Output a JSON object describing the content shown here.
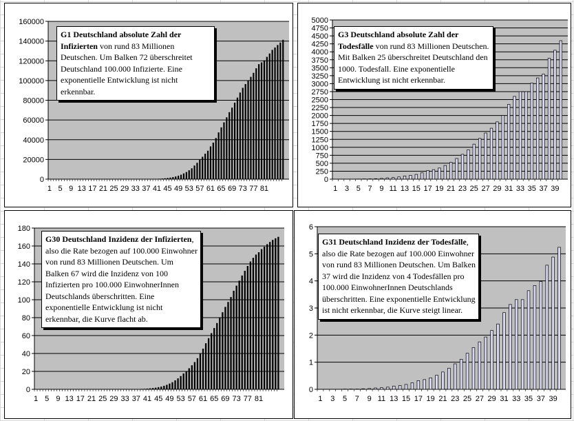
{
  "chart_data": [
    {
      "type": "bar",
      "id": "G1",
      "ylim": [
        0,
        160000
      ],
      "yticks": [
        0,
        20000,
        40000,
        60000,
        80000,
        100000,
        120000,
        140000,
        160000
      ],
      "ytick_labels": [
        "0",
        "20000",
        "40000",
        "60000",
        "80000",
        "100000",
        "120000",
        "140000",
        "160000"
      ],
      "xtick_labels": [
        "1",
        "5",
        "9",
        "13",
        "17",
        "21",
        "25",
        "29",
        "33",
        "37",
        "41",
        "45",
        "49",
        "53",
        "57",
        "61",
        "65",
        "69",
        "73",
        "77",
        "81"
      ],
      "bar_color": "#000000",
      "grid": true,
      "plot_bg": "#c0c0c0",
      "values": [
        0,
        0,
        0,
        0,
        0,
        0,
        0,
        0,
        0,
        0,
        0,
        0,
        0,
        0,
        0,
        0,
        0,
        0,
        0,
        0,
        0,
        0,
        0,
        0,
        0,
        0,
        0,
        0,
        0,
        0,
        0,
        0,
        0,
        0,
        10,
        20,
        40,
        70,
        120,
        200,
        300,
        450,
        650,
        900,
        1200,
        1600,
        2100,
        2700,
        3500,
        4500,
        5800,
        7200,
        9000,
        11000,
        13800,
        16600,
        19600,
        22700,
        25800,
        28800,
        33200,
        37000,
        41700,
        47400,
        52500,
        57600,
        62700,
        67900,
        72500,
        77600,
        82700,
        87800,
        92600,
        96400,
        100100,
        103700,
        107800,
        112400,
        116600,
        118400,
        120500,
        124000,
        127400,
        131100,
        133500,
        136000,
        138500,
        141300
      ],
      "title": "G1  Deutschland absolute Zahl der",
      "note_title2": "Infizierten",
      "note_body": " von rund 83 Millionen Deutschen. Um Balken 72 überschreitet Deutschland 100.000 Infizierte. Eine exponentielle Entwicklung ist nicht erkennbar."
    },
    {
      "type": "bar",
      "id": "G3",
      "ylim": [
        0,
        5000
      ],
      "yticks": [
        0,
        250,
        500,
        750,
        1000,
        1250,
        1500,
        1750,
        2000,
        2250,
        2500,
        2750,
        3000,
        3250,
        3500,
        3750,
        4000,
        4250,
        4500,
        4750,
        5000
      ],
      "ytick_labels": [
        "0",
        "250",
        "500",
        "750",
        "1000",
        "1250",
        "1500",
        "1750",
        "2000",
        "2250",
        "2500",
        "2750",
        "3000",
        "3250",
        "3500",
        "3750",
        "4000",
        "4250",
        "4500",
        "4750",
        "5000"
      ],
      "xtick_labels": [
        "1",
        "3",
        "5",
        "7",
        "9",
        "11",
        "13",
        "15",
        "17",
        "19",
        "21",
        "23",
        "25",
        "27",
        "29",
        "31",
        "33",
        "35",
        "37",
        "39"
      ],
      "bar_color": "#d8d8f0",
      "grid": true,
      "plot_bg": "#c0c0c0",
      "values": [
        0,
        0,
        0,
        0,
        5,
        8,
        10,
        15,
        25,
        40,
        50,
        70,
        100,
        120,
        150,
        200,
        270,
        300,
        350,
        430,
        530,
        650,
        780,
        920,
        1100,
        1280,
        1450,
        1600,
        1800,
        2000,
        2350,
        2600,
        2750,
        2750,
        3020,
        3180,
        3300,
        3800,
        4050,
        4350
      ],
      "title": "G3  Deutschland absolute Zahl der",
      "note_title2": "Todesfälle",
      "note_body": " von  rund 83 Millionen Deutschen. Mit Balken 25 überschreitet Deutschland den 1000. Todesfall. Eine exponentielle Entwicklung ist nicht erkennbar."
    },
    {
      "type": "bar",
      "id": "G30",
      "ylim": [
        0,
        180
      ],
      "yticks": [
        0,
        20,
        40,
        60,
        80,
        100,
        120,
        140,
        160,
        180
      ],
      "ytick_labels": [
        "0",
        "20",
        "40",
        "60",
        "80",
        "100",
        "120",
        "140",
        "160",
        "180"
      ],
      "xtick_labels": [
        "1",
        "5",
        "9",
        "13",
        "17",
        "21",
        "25",
        "29",
        "33",
        "37",
        "41",
        "45",
        "49",
        "53",
        "57",
        "61",
        "65",
        "69",
        "73",
        "77",
        "81"
      ],
      "bar_color": "#000000",
      "grid": true,
      "plot_bg": "#c0c0c0",
      "values": [
        0,
        0,
        0,
        0,
        0,
        0,
        0,
        0,
        0,
        0,
        0,
        0,
        0,
        0,
        0,
        0,
        0,
        0,
        0,
        0,
        0,
        0,
        0,
        0,
        0,
        0,
        0,
        0,
        0,
        0,
        0,
        0,
        0,
        0,
        0.1,
        0.1,
        0.2,
        0.3,
        0.5,
        0.6,
        0.8,
        1.1,
        1.4,
        1.8,
        2.4,
        3.0,
        3.9,
        5.0,
        6.4,
        7.9,
        10.0,
        12.2,
        14.8,
        17.7,
        20.0,
        23.5,
        26.8,
        30.4,
        34.7,
        39.6,
        45.3,
        51.4,
        57.1,
        62.7,
        68.4,
        74.0,
        80.0,
        86.0,
        92.0,
        97.5,
        103.0,
        110.0,
        115.7,
        121.3,
        127.0,
        132.3,
        137.7,
        142.7,
        146.8,
        150.4,
        153.0,
        156.5,
        159.2,
        162.0,
        164.5,
        166.8,
        168.6,
        170.2
      ],
      "title": "G30 Deutschland Inzidenz der Infizierten",
      "note_body": ", also die Rate bezogen auf 100.000 Einwohner von rund 83 Millionen Deutschen. Um  Balken 67 wird die Inzidenz von 100 Infizierten  pro 100.000 EinwohnerInnen Deutschlands überschritten. Eine exponentielle Entwicklung ist nicht erkennbar, die Kurve flacht ab."
    },
    {
      "type": "bar",
      "id": "G31",
      "ylim": [
        0,
        6
      ],
      "yticks": [
        0,
        1,
        2,
        3,
        4,
        5,
        6
      ],
      "ytick_labels": [
        "0",
        "1",
        "2",
        "3",
        "4",
        "5",
        "6"
      ],
      "xtick_labels": [
        "1",
        "3",
        "5",
        "7",
        "9",
        "11",
        "13",
        "15",
        "17",
        "19",
        "21",
        "23",
        "25",
        "27",
        "29",
        "31",
        "33",
        "35",
        "37",
        "39"
      ],
      "bar_color": "#d8d8f0",
      "grid": true,
      "plot_bg": "#c0c0c0",
      "values": [
        0,
        0,
        0,
        0,
        0.01,
        0.01,
        0.01,
        0.02,
        0.03,
        0.05,
        0.06,
        0.08,
        0.12,
        0.14,
        0.18,
        0.24,
        0.32,
        0.36,
        0.42,
        0.52,
        0.64,
        0.78,
        0.94,
        1.11,
        1.33,
        1.54,
        1.75,
        1.93,
        2.17,
        2.41,
        2.83,
        3.13,
        3.31,
        3.31,
        3.64,
        3.83,
        3.98,
        4.58,
        4.88,
        5.24
      ],
      "title": "G31 Deutschland Inzidenz der Todesfälle",
      "note_body": ", also die Rate bezogen auf 100.000 Einwohner von rund 83 Millionen Deutschen. Um  Balken 37 wird die Inzidenz von 4 Todesfällen  pro 100.000 EinwohnerInnen Deutschlands überschritten. Eine exponentielle Entwicklung ist nicht erkennbar, die Kurve steigt linear."
    }
  ]
}
